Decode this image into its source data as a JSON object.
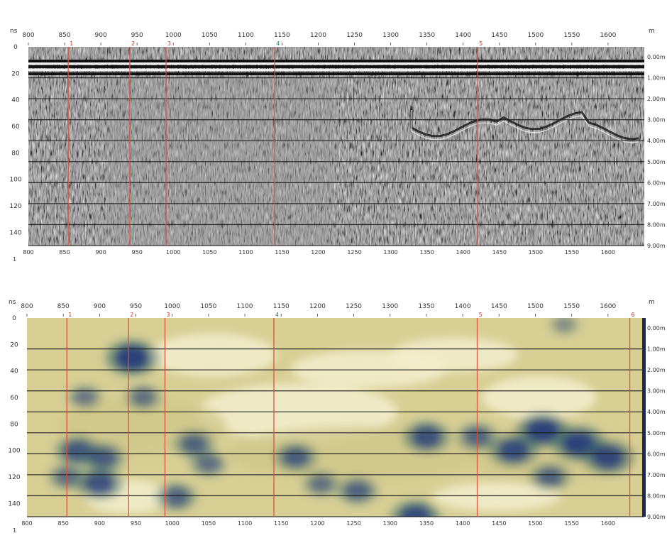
{
  "colors": {
    "marker_line": "#d9503a",
    "radar_bg": "#8a8a8a",
    "heat_low": "#f3efcf",
    "heat_mid": "#cfc689",
    "heat_high": "#233a7a",
    "grid_line": "#1a1a1a"
  },
  "chart_data": [
    {
      "type": "heatmap",
      "variant": "radargram",
      "x_top_ticks": [
        "800",
        "850",
        "900",
        "950",
        "1000",
        "1050",
        "1100",
        "1150",
        "1200",
        "1250",
        "1300",
        "1350",
        "1400",
        "1450",
        "1500",
        "1550",
        "1600"
      ],
      "x_bottom_ticks": [
        "800",
        "850",
        "900",
        "950",
        "1000",
        "1050",
        "1100",
        "1150",
        "1200",
        "1250",
        "1300",
        "1350",
        "1400",
        "1450",
        "1500",
        "1550",
        "1600"
      ],
      "x_unit": "m",
      "y_unit": "ns",
      "y_ticks": [
        "0",
        "20",
        "40",
        "60",
        "80",
        "100",
        "120",
        "140"
      ],
      "y_range": [
        0,
        150
      ],
      "right_ticks": [
        "0.00m",
        "1.00m",
        "2.00m",
        "3.00m",
        "4.00m",
        "5.00m",
        "6.00m",
        "7.00m",
        "8.00m",
        "9.00m"
      ],
      "markers": [
        "1",
        "2",
        "3",
        "4",
        "5"
      ],
      "marker_x": [
        855,
        940,
        990,
        1140,
        1420
      ],
      "left_end_note": "1"
    },
    {
      "type": "heatmap",
      "variant": "energy",
      "x_top_ticks": [
        "800",
        "850",
        "900",
        "950",
        "1000",
        "1050",
        "1100",
        "1150",
        "1200",
        "1250",
        "1300",
        "1350",
        "1400",
        "1450",
        "1500",
        "1550",
        "1600"
      ],
      "x_bottom_ticks": [
        "800",
        "850",
        "900",
        "950",
        "1000",
        "1050",
        "1100",
        "1150",
        "1200",
        "1250",
        "1300",
        "1350",
        "1400",
        "1450",
        "1500",
        "1550",
        "1600"
      ],
      "x_unit": "m",
      "y_unit": "ns",
      "y_ticks": [
        "0",
        "20",
        "40",
        "60",
        "80",
        "100",
        "120",
        "140"
      ],
      "y_range": [
        0,
        150
      ],
      "right_ticks": [
        "0.00m",
        "1.00m",
        "2.00m",
        "3.00m",
        "4.00m",
        "5.00m",
        "6.00m",
        "7.00m",
        "8.00m",
        "9.00m"
      ],
      "markers": [
        "1",
        "2",
        "3",
        "4",
        "5",
        "6"
      ],
      "marker_x": [
        855,
        940,
        990,
        1140,
        1420,
        1630
      ],
      "left_end_note": "1",
      "anomalies": [
        {
          "x": 945,
          "y": 30,
          "v": 1.0
        },
        {
          "x": 960,
          "y": 60,
          "v": 0.6
        },
        {
          "x": 880,
          "y": 60,
          "v": 0.55
        },
        {
          "x": 870,
          "y": 100,
          "v": 0.8
        },
        {
          "x": 905,
          "y": 105,
          "v": 0.75
        },
        {
          "x": 900,
          "y": 125,
          "v": 0.85
        },
        {
          "x": 855,
          "y": 120,
          "v": 0.6
        },
        {
          "x": 1030,
          "y": 95,
          "v": 0.7
        },
        {
          "x": 1050,
          "y": 110,
          "v": 0.6
        },
        {
          "x": 1005,
          "y": 135,
          "v": 0.7
        },
        {
          "x": 1170,
          "y": 105,
          "v": 0.75
        },
        {
          "x": 1205,
          "y": 125,
          "v": 0.6
        },
        {
          "x": 1255,
          "y": 130,
          "v": 0.7
        },
        {
          "x": 1350,
          "y": 90,
          "v": 0.85
        },
        {
          "x": 1335,
          "y": 150,
          "v": 0.9
        },
        {
          "x": 1420,
          "y": 90,
          "v": 0.7
        },
        {
          "x": 1470,
          "y": 100,
          "v": 0.9
        },
        {
          "x": 1510,
          "y": 85,
          "v": 1.0
        },
        {
          "x": 1560,
          "y": 95,
          "v": 1.0
        },
        {
          "x": 1600,
          "y": 105,
          "v": 0.95
        },
        {
          "x": 1520,
          "y": 120,
          "v": 0.7
        },
        {
          "x": 1540,
          "y": 5,
          "v": 0.4
        }
      ]
    }
  ]
}
